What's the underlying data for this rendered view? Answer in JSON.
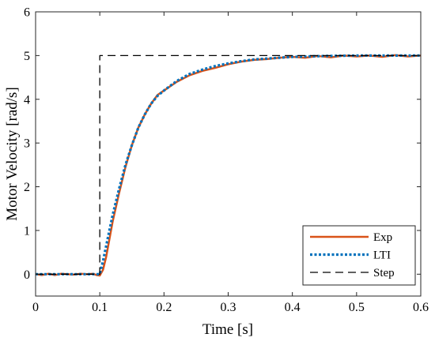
{
  "chart_data": {
    "type": "line",
    "xlabel": "Time [s]",
    "ylabel": "Motor Velocity [rad/s]",
    "xlim": [
      0,
      0.6
    ],
    "ylim": [
      -0.5,
      6
    ],
    "x_ticks": [
      0,
      0.1,
      0.2,
      0.3,
      0.4,
      0.5,
      0.6
    ],
    "x_tick_labels": [
      "0",
      "0.1",
      "0.2",
      "0.3",
      "0.4",
      "0.5",
      "0.6"
    ],
    "y_ticks": [
      0,
      1,
      2,
      3,
      4,
      5,
      6
    ],
    "y_tick_labels": [
      "0",
      "1",
      "2",
      "3",
      "4",
      "5",
      "6"
    ],
    "grid": false,
    "legend_position": "bottom-right",
    "series": [
      {
        "name": "Exp",
        "color": "#d95319",
        "style": "solid",
        "x": [
          0,
          0.01,
          0.02,
          0.03,
          0.04,
          0.05,
          0.06,
          0.07,
          0.08,
          0.09,
          0.095,
          0.1,
          0.105,
          0.11,
          0.115,
          0.12,
          0.13,
          0.14,
          0.15,
          0.16,
          0.17,
          0.18,
          0.19,
          0.2,
          0.22,
          0.24,
          0.26,
          0.28,
          0.3,
          0.32,
          0.34,
          0.36,
          0.38,
          0.4,
          0.42,
          0.44,
          0.46,
          0.48,
          0.5,
          0.52,
          0.54,
          0.56,
          0.58,
          0.6
        ],
        "y": [
          0,
          -0.02,
          0.01,
          -0.02,
          0.01,
          0,
          -0.01,
          0.01,
          0,
          0.01,
          -0.02,
          -0.03,
          0.1,
          0.4,
          0.8,
          1.2,
          1.85,
          2.45,
          2.95,
          3.35,
          3.65,
          3.9,
          4.1,
          4.2,
          4.4,
          4.55,
          4.65,
          4.72,
          4.8,
          4.86,
          4.9,
          4.92,
          4.95,
          4.97,
          4.95,
          4.99,
          4.96,
          5.0,
          4.98,
          5.0,
          4.97,
          5.01,
          4.98,
          5.0
        ]
      },
      {
        "name": "LTI",
        "color": "#0072bd",
        "style": "dotted",
        "x": [
          0,
          0.1,
          0.105,
          0.11,
          0.115,
          0.12,
          0.13,
          0.14,
          0.15,
          0.16,
          0.17,
          0.18,
          0.19,
          0.2,
          0.22,
          0.24,
          0.26,
          0.28,
          0.3,
          0.32,
          0.34,
          0.36,
          0.38,
          0.4,
          0.45,
          0.5,
          0.55,
          0.6
        ],
        "y": [
          0,
          0,
          0.3,
          0.65,
          1.0,
          1.35,
          1.95,
          2.5,
          2.95,
          3.35,
          3.65,
          3.9,
          4.08,
          4.2,
          4.42,
          4.58,
          4.68,
          4.76,
          4.82,
          4.87,
          4.91,
          4.93,
          4.95,
          4.97,
          4.99,
          5.0,
          5.0,
          5.0
        ]
      },
      {
        "name": "Step",
        "color": "#000000",
        "style": "dashed",
        "x": [
          0,
          0.1,
          0.1,
          0.6
        ],
        "y": [
          0,
          0,
          5,
          5
        ]
      }
    ]
  }
}
